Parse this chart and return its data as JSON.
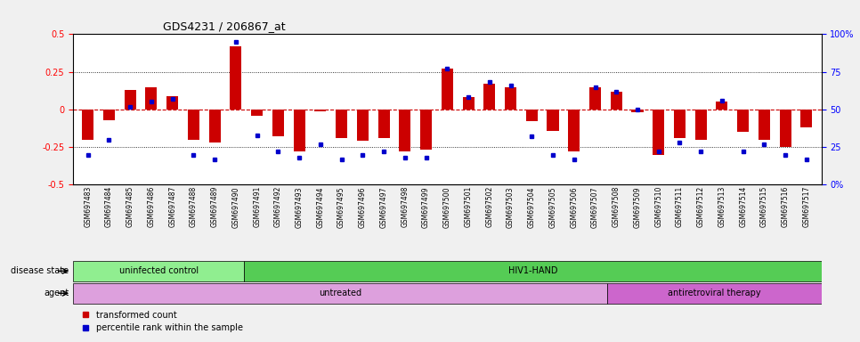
{
  "title": "GDS4231 / 206867_at",
  "samples": [
    "GSM697483",
    "GSM697484",
    "GSM697485",
    "GSM697486",
    "GSM697487",
    "GSM697488",
    "GSM697489",
    "GSM697490",
    "GSM697491",
    "GSM697492",
    "GSM697493",
    "GSM697494",
    "GSM697495",
    "GSM697496",
    "GSM697497",
    "GSM697498",
    "GSM697499",
    "GSM697500",
    "GSM697501",
    "GSM697502",
    "GSM697503",
    "GSM697504",
    "GSM697505",
    "GSM697506",
    "GSM697507",
    "GSM697508",
    "GSM697509",
    "GSM697510",
    "GSM697511",
    "GSM697512",
    "GSM697513",
    "GSM697514",
    "GSM697515",
    "GSM697516",
    "GSM697517"
  ],
  "transformed_count": [
    -0.2,
    -0.07,
    0.13,
    0.15,
    0.09,
    -0.2,
    -0.22,
    0.42,
    -0.04,
    -0.18,
    -0.28,
    -0.01,
    -0.19,
    -0.21,
    -0.19,
    -0.28,
    -0.27,
    0.27,
    0.08,
    0.17,
    0.15,
    -0.08,
    -0.14,
    -0.28,
    0.15,
    0.12,
    -0.02,
    -0.3,
    -0.19,
    -0.2,
    0.05,
    -0.15,
    -0.2,
    -0.25,
    -0.12
  ],
  "percentile_rank": [
    20,
    30,
    52,
    55,
    57,
    20,
    17,
    95,
    33,
    22,
    18,
    27,
    17,
    20,
    22,
    18,
    18,
    77,
    58,
    68,
    66,
    32,
    20,
    17,
    65,
    62,
    50,
    22,
    28,
    22,
    56,
    22,
    27,
    20,
    17
  ],
  "ylim_left": [
    -0.5,
    0.5
  ],
  "ylim_right": [
    0,
    100
  ],
  "bar_color": "#CC0000",
  "dot_color": "#0000CC",
  "zero_line_color": "#CC0000",
  "grid_color": "black",
  "uninfected_n": 8,
  "hiv_n": 27,
  "untreated_n": 25,
  "antiretro_n": 10,
  "total_n": 35,
  "disease_uninfected_label": "uninfected control",
  "disease_uninfected_color": "#90EE90",
  "disease_hiv_label": "HIV1-HAND",
  "disease_hiv_color": "#55CC55",
  "agent_untreated_label": "untreated",
  "agent_untreated_color": "#DDA0DD",
  "agent_antiretro_label": "antiretroviral therapy",
  "agent_antiretro_color": "#CC66CC",
  "background_color": "#F0F0F0",
  "plot_bg_color": "#FFFFFF",
  "tick_label_bg": "#D3D3D3"
}
